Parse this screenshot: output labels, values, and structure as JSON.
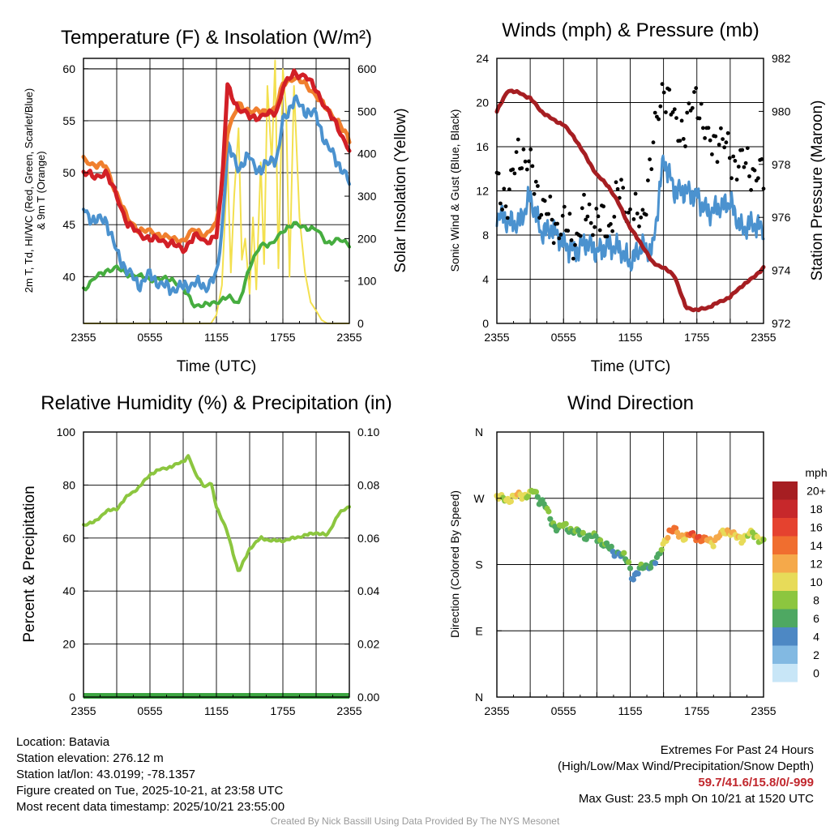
{
  "panels": {
    "temperature": {
      "title": "Temperature (F) & Insolation (W/m²)",
      "ylabel_left_line1": "2m T, Td, HI/WC (Red, Green, Scarlet/Blue)",
      "ylabel_left_line2": "& 9m T (Orange)",
      "ylabel_right": "Solar Insolation (Yellow)",
      "xlabel": "Time (UTC)"
    },
    "winds": {
      "title": "Winds (mph) & Pressure (mb)",
      "ylabel_left": "Sonic Wind & Gust (Blue, Black)",
      "ylabel_right": "Station Pressure (Maroon)",
      "xlabel": "Time (UTC)"
    },
    "humidity": {
      "title": "Relative Humidity (%) & Precipitation (in)",
      "ylabel_left": "Percent & Precipitation"
    },
    "direction": {
      "title": "Wind Direction",
      "ylabel_left": "Direction (Colored By Speed)",
      "colorbar_title": "mph"
    }
  },
  "footer": {
    "location": "Location: Batavia",
    "elevation": "Station elevation: 276.12 m",
    "latlon": "Station lat/lon: 43.0199; -78.1357",
    "created": "Figure created on Tue, 2025-10-21, at 23:58 UTC",
    "recent": "Most recent data timestamp: 2025/10/21 23:55:00",
    "extremes_title": "Extremes For Past 24 Hours",
    "extremes_legend": "(High/Low/Max Wind/Precipitation/Snow Depth)",
    "extremes_values": "59.7/41.6/15.8/0/-999",
    "max_gust": "Max Gust: 23.5 mph On 10/21 at 1520 UTC",
    "credit": "Created By Nick Bassill Using Data Provided By The NYS Mesonet"
  },
  "chart_data": [
    {
      "type": "line",
      "id": "temperature",
      "title": "Temperature (F) & Insolation (W/m2)",
      "xlabel": "Time (UTC)",
      "x_ticks": [
        "2355",
        "0555",
        "1155",
        "1755",
        "2355"
      ],
      "x_range_hours": [
        0,
        24
      ],
      "ylim": [
        35.5,
        61
      ],
      "y_ticks": [
        40,
        45,
        50,
        55,
        60
      ],
      "y2lim": [
        0,
        625
      ],
      "y2_ticks": [
        0,
        100,
        200,
        300,
        400,
        500,
        600
      ],
      "series": [
        {
          "name": "9m T (Orange)",
          "color": "#f07f2e",
          "axis": "left",
          "x": [
            0,
            1,
            2,
            3,
            4,
            5,
            6,
            7,
            8,
            9,
            10,
            11,
            12,
            12.5,
            13,
            14,
            15,
            16,
            17,
            17.5,
            18,
            19,
            20,
            21,
            22,
            23,
            24
          ],
          "values": [
            51.2,
            50.8,
            50.6,
            48.0,
            45.5,
            44.5,
            44.3,
            44.0,
            43.6,
            43.5,
            44.5,
            44.0,
            45.0,
            49.0,
            54.0,
            56.5,
            56.0,
            55.8,
            56.0,
            56.5,
            58.5,
            59.2,
            58.5,
            57.5,
            56.0,
            55.0,
            53.0
          ]
        },
        {
          "name": "2m T (Red)",
          "color": "#d21f26",
          "axis": "left",
          "x": [
            0,
            1,
            2,
            3,
            4,
            5,
            6,
            7,
            8,
            9,
            10,
            11,
            12,
            12.5,
            13,
            14,
            15,
            16,
            17,
            17.5,
            18,
            19,
            20,
            21,
            22,
            23,
            24
          ],
          "values": [
            50.0,
            49.6,
            50.0,
            47.8,
            45.0,
            44.2,
            43.6,
            43.5,
            43.2,
            42.5,
            44.0,
            43.3,
            44.0,
            48.5,
            58.5,
            56.0,
            55.5,
            55.3,
            55.8,
            56.0,
            58.2,
            59.6,
            59.3,
            58.0,
            56.0,
            54.3,
            52.2
          ]
        },
        {
          "name": "HI/WC (Blue)",
          "color": "#4b92cf",
          "axis": "left",
          "x": [
            0,
            1,
            2,
            3,
            4,
            5,
            6,
            7,
            8,
            9,
            10,
            11,
            12,
            12.5,
            13,
            14,
            15,
            16,
            17,
            17.5,
            18,
            19,
            20,
            21,
            22,
            23,
            24
          ],
          "values": [
            46.5,
            45.3,
            45.6,
            42.3,
            40.5,
            39.2,
            40.2,
            39.2,
            38.8,
            39.0,
            39.4,
            39.0,
            40.0,
            44.5,
            52.5,
            50.5,
            51.5,
            50.0,
            51.5,
            51.2,
            55.0,
            57.0,
            56.0,
            55.5,
            52.5,
            51.0,
            49.0
          ]
        },
        {
          "name": "Td (Green)",
          "color": "#46ad3f",
          "axis": "left",
          "x": [
            0,
            1,
            2,
            3,
            4,
            5,
            6,
            7,
            8,
            9,
            10,
            11,
            12,
            13,
            14,
            15,
            16,
            17,
            18,
            19,
            20,
            21,
            22,
            23,
            24
          ],
          "values": [
            38.8,
            39.8,
            40.6,
            40.8,
            40.3,
            40.0,
            39.8,
            39.7,
            39.8,
            38.8,
            37.3,
            37.2,
            37.6,
            38.0,
            37.5,
            40.8,
            43.2,
            43.0,
            44.5,
            45.0,
            44.8,
            44.5,
            43.3,
            43.5,
            43.2
          ]
        },
        {
          "name": "Solar Insolation (Yellow)",
          "color": "#f3e04f",
          "axis": "right",
          "x": [
            0,
            11.5,
            12,
            12.5,
            13,
            13.3,
            13.6,
            14,
            14.3,
            14.6,
            15,
            15.3,
            15.6,
            16,
            16.3,
            16.6,
            17,
            17.3,
            17.6,
            18,
            18.3,
            18.6,
            19,
            19.5,
            20,
            20.5,
            21,
            21.5,
            22,
            24
          ],
          "values": [
            0,
            0,
            20,
            90,
            380,
            120,
            300,
            460,
            150,
            200,
            70,
            250,
            80,
            380,
            140,
            560,
            380,
            620,
            130,
            600,
            500,
            110,
            560,
            250,
            120,
            50,
            30,
            8,
            0,
            0
          ]
        }
      ]
    },
    {
      "type": "line",
      "id": "winds",
      "title": "Winds (mph) & Pressure (mb)",
      "xlabel": "Time (UTC)",
      "x_ticks": [
        "2355",
        "0555",
        "1155",
        "1755",
        "2355"
      ],
      "x_range_hours": [
        0,
        24
      ],
      "ylim": [
        0,
        24
      ],
      "y_ticks": [
        0,
        4,
        8,
        12,
        16,
        20,
        24
      ],
      "y2lim": [
        972,
        982
      ],
      "y2_ticks": [
        972,
        974,
        976,
        978,
        980,
        982
      ],
      "series": [
        {
          "name": "Sonic Wind (Blue)",
          "color": "#4b92cf",
          "axis": "left",
          "x": [
            0,
            1,
            2,
            3,
            4,
            5,
            6,
            7,
            8,
            9,
            10,
            11,
            12,
            13,
            14,
            15,
            16,
            17,
            18,
            19,
            20,
            21,
            22,
            23,
            24
          ],
          "values": [
            10.0,
            9.2,
            9.0,
            11.5,
            8.2,
            8.6,
            7.2,
            6.5,
            7.4,
            6.5,
            7.0,
            6.8,
            5.5,
            7.0,
            6.5,
            15.0,
            12.0,
            12.0,
            11.5,
            10.0,
            10.5,
            11.0,
            8.5,
            9.0,
            8.5
          ]
        },
        {
          "name": "Gust (Black dots)",
          "color": "#000000",
          "axis": "left",
          "x": [
            0,
            1,
            2,
            3,
            4,
            5,
            6,
            7,
            8,
            9,
            10,
            11,
            12,
            13,
            14,
            15,
            16,
            17,
            18,
            19,
            20,
            21,
            22,
            23,
            24
          ],
          "values": [
            12.5,
            11.0,
            16.0,
            14.0,
            11.0,
            9.0,
            9.0,
            7.5,
            10.0,
            9.5,
            8.5,
            12.0,
            10.0,
            9.0,
            15.5,
            22.0,
            18.0,
            17.5,
            21.0,
            16.0,
            17.0,
            15.0,
            14.5,
            14.0,
            13.0
          ]
        },
        {
          "name": "Station Pressure (Maroon)",
          "color": "#a61e22",
          "axis": "right",
          "x": [
            0,
            1,
            2,
            3,
            4,
            5,
            6,
            7,
            8,
            9,
            10,
            11,
            12,
            13,
            14,
            15,
            16,
            17,
            18,
            19,
            20,
            21,
            22,
            23,
            24
          ],
          "values": [
            980.0,
            980.8,
            980.7,
            980.5,
            980.0,
            979.7,
            979.5,
            979.0,
            978.3,
            977.6,
            977.2,
            976.5,
            975.6,
            975.0,
            974.3,
            974.1,
            973.8,
            972.6,
            972.5,
            972.6,
            972.8,
            973.0,
            973.4,
            973.7,
            974.1
          ]
        }
      ]
    },
    {
      "type": "line",
      "id": "humidity",
      "title": "Relative Humidity (%) & Precipitation (in)",
      "x_ticks": [
        "2355",
        "0555",
        "1155",
        "1755",
        "2355"
      ],
      "x_range_hours": [
        0,
        24
      ],
      "ylim": [
        0,
        100
      ],
      "y_ticks": [
        0,
        20,
        40,
        60,
        80,
        100
      ],
      "y2lim": [
        0,
        0.1
      ],
      "y2_ticks": [
        "0.00",
        "0.02",
        "0.04",
        "0.06",
        "0.08",
        "0.10"
      ],
      "series": [
        {
          "name": "Relative Humidity",
          "color": "#8cc63f",
          "axis": "left",
          "x": [
            0,
            1,
            2,
            3,
            4,
            5,
            6,
            7,
            8,
            9,
            9.5,
            10,
            11,
            11.5,
            12,
            13,
            14,
            15,
            16,
            17,
            18,
            19,
            20,
            21,
            22,
            23,
            24
          ],
          "values": [
            65,
            66,
            70,
            71,
            76,
            79,
            84,
            86,
            87,
            89,
            91,
            85,
            79,
            81,
            72,
            62,
            47,
            56,
            60,
            59,
            59,
            60,
            61,
            62,
            61,
            69,
            72
          ]
        },
        {
          "name": "Precipitation",
          "color": "#3da642",
          "axis": "right",
          "x": [
            0,
            24
          ],
          "values": [
            0,
            0
          ]
        }
      ]
    },
    {
      "type": "scatter",
      "id": "direction",
      "title": "Wind Direction",
      "x_ticks": [
        "2355",
        "0555",
        "1155",
        "1755",
        "2355"
      ],
      "x_range_hours": [
        0,
        24
      ],
      "y_ticks": [
        "N",
        "E",
        "S",
        "W",
        "N"
      ],
      "ylim_degrees": [
        0,
        360
      ],
      "colorbar": {
        "title": "mph",
        "labels": [
          "20+",
          "18",
          "16",
          "14",
          "12",
          "10",
          "8",
          "6",
          "4",
          "2",
          "0"
        ],
        "colors": [
          "#a61e22",
          "#c7282b",
          "#e5422f",
          "#f06e2f",
          "#f5a94a",
          "#e7db59",
          "#8cc63f",
          "#4ea862",
          "#4d88c4",
          "#82b9e2",
          "#c8e6f7"
        ]
      },
      "points": [
        {
          "x": 0.0,
          "dir": 272,
          "spd": 10
        },
        {
          "x": 0.5,
          "dir": 270,
          "spd": 9
        },
        {
          "x": 1.0,
          "dir": 268,
          "spd": 10
        },
        {
          "x": 1.5,
          "dir": 271,
          "spd": 10
        },
        {
          "x": 2.0,
          "dir": 275,
          "spd": 11
        },
        {
          "x": 2.5,
          "dir": 273,
          "spd": 9
        },
        {
          "x": 3.0,
          "dir": 276,
          "spd": 8
        },
        {
          "x": 3.4,
          "dir": 280,
          "spd": 8
        },
        {
          "x": 3.8,
          "dir": 268,
          "spd": 7
        },
        {
          "x": 4.2,
          "dir": 265,
          "spd": 6
        },
        {
          "x": 5.0,
          "dir": 235,
          "spd": 7
        },
        {
          "x": 5.5,
          "dir": 230,
          "spd": 7
        },
        {
          "x": 6.0,
          "dir": 233,
          "spd": 8
        },
        {
          "x": 6.5,
          "dir": 228,
          "spd": 7
        },
        {
          "x": 7.0,
          "dir": 226,
          "spd": 7
        },
        {
          "x": 7.5,
          "dir": 222,
          "spd": 6
        },
        {
          "x": 8.0,
          "dir": 218,
          "spd": 7
        },
        {
          "x": 8.5,
          "dir": 220,
          "spd": 6
        },
        {
          "x": 9.0,
          "dir": 215,
          "spd": 6
        },
        {
          "x": 9.5,
          "dir": 210,
          "spd": 7
        },
        {
          "x": 10.0,
          "dir": 205,
          "spd": 6
        },
        {
          "x": 10.5,
          "dir": 195,
          "spd": 4
        },
        {
          "x": 11.0,
          "dir": 197,
          "spd": 5
        },
        {
          "x": 11.5,
          "dir": 190,
          "spd": 7
        },
        {
          "x": 12.0,
          "dir": 175,
          "spd": 6
        },
        {
          "x": 12.2,
          "dir": 160,
          "spd": 4
        },
        {
          "x": 12.5,
          "dir": 168,
          "spd": 4
        },
        {
          "x": 13.0,
          "dir": 175,
          "spd": 6
        },
        {
          "x": 13.5,
          "dir": 178,
          "spd": 6
        },
        {
          "x": 14.0,
          "dir": 180,
          "spd": 5
        },
        {
          "x": 14.5,
          "dir": 188,
          "spd": 5
        },
        {
          "x": 15.0,
          "dir": 210,
          "spd": 10
        },
        {
          "x": 15.5,
          "dir": 222,
          "spd": 13
        },
        {
          "x": 16.0,
          "dir": 228,
          "spd": 14
        },
        {
          "x": 16.5,
          "dir": 220,
          "spd": 12
        },
        {
          "x": 17.0,
          "dir": 215,
          "spd": 11
        },
        {
          "x": 17.5,
          "dir": 222,
          "spd": 15
        },
        {
          "x": 18.0,
          "dir": 218,
          "spd": 16
        },
        {
          "x": 18.5,
          "dir": 212,
          "spd": 14
        },
        {
          "x": 19.0,
          "dir": 215,
          "spd": 12
        },
        {
          "x": 19.5,
          "dir": 210,
          "spd": 11
        },
        {
          "x": 20.0,
          "dir": 218,
          "spd": 12
        },
        {
          "x": 20.5,
          "dir": 226,
          "spd": 10
        },
        {
          "x": 21.0,
          "dir": 224,
          "spd": 12
        },
        {
          "x": 21.5,
          "dir": 218,
          "spd": 11
        },
        {
          "x": 22.0,
          "dir": 214,
          "spd": 10
        },
        {
          "x": 22.5,
          "dir": 220,
          "spd": 10
        },
        {
          "x": 23.0,
          "dir": 222,
          "spd": 8
        },
        {
          "x": 23.5,
          "dir": 216,
          "spd": 9
        },
        {
          "x": 24.0,
          "dir": 212,
          "spd": 8
        }
      ]
    }
  ]
}
